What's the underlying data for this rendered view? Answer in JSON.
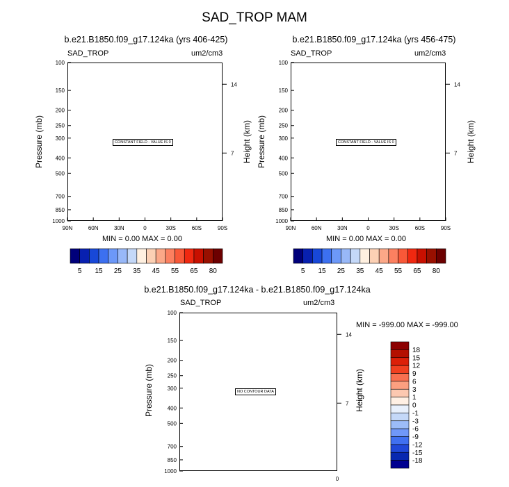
{
  "chart_data": [
    {
      "type": "contour",
      "panel_title": "b.e21.B1850.f09_g17.124ka (yrs 406-425)",
      "left_label": "SAD_TROP",
      "right_label": "um2/cm3",
      "ylabel": "Pressure (mb)",
      "ylabel_right": "Height (km)",
      "pressure_ticks": [
        "100",
        "150",
        "200",
        "250",
        "300",
        "400",
        "500",
        "700",
        "850",
        "1000"
      ],
      "height_ticks": [
        "14",
        "7"
      ],
      "lat_ticks": [
        "90N",
        "60N",
        "30N",
        "0",
        "30S",
        "60S",
        "90S"
      ],
      "note": "CONSTANT FIELD - VALUE IS 0",
      "stats": "MIN =   0.00  MAX =   0.00",
      "colorbar_labels": [
        "5",
        "15",
        "25",
        "35",
        "45",
        "55",
        "65",
        "80"
      ],
      "colorbar_colors": [
        "#00007a",
        "#0820b0",
        "#1848d8",
        "#3c70f0",
        "#6c98f8",
        "#98b8f8",
        "#c4d8f8",
        "#fff0e0",
        "#fcd0b4",
        "#fca888",
        "#fc8060",
        "#f85838",
        "#f02810",
        "#c81000",
        "#981000",
        "#6c0000"
      ]
    },
    {
      "type": "contour",
      "panel_title": "b.e21.B1850.f09_g17.124ka (yrs 456-475)",
      "left_label": "SAD_TROP",
      "right_label": "um2/cm3",
      "ylabel": "Pressure (mb)",
      "ylabel_right": "Height (km)",
      "pressure_ticks": [
        "100",
        "150",
        "200",
        "250",
        "300",
        "400",
        "500",
        "700",
        "850",
        "1000"
      ],
      "height_ticks": [
        "14",
        "7"
      ],
      "lat_ticks": [
        "90N",
        "60N",
        "30N",
        "0",
        "30S",
        "60S",
        "90S"
      ],
      "note": "CONSTANT FIELD - VALUE IS 0",
      "stats": "MIN =   0.00  MAX =   0.00",
      "colorbar_labels": [
        "5",
        "15",
        "25",
        "35",
        "45",
        "55",
        "65",
        "80"
      ],
      "colorbar_colors": [
        "#00007a",
        "#0820b0",
        "#1848d8",
        "#3c70f0",
        "#6c98f8",
        "#98b8f8",
        "#c4d8f8",
        "#fff0e0",
        "#fcd0b4",
        "#fca888",
        "#fc8060",
        "#f85838",
        "#f02810",
        "#c81000",
        "#981000",
        "#6c0000"
      ]
    },
    {
      "type": "contour",
      "panel_title": "b.e21.B1850.f09_g17.124ka - b.e21.B1850.f09_g17.124ka",
      "left_label": "SAD_TROP",
      "right_label": "um2/cm3",
      "ylabel": "Pressure (mb)",
      "ylabel_right": "Height (km)",
      "pressure_ticks": [
        "100",
        "150",
        "200",
        "250",
        "300",
        "400",
        "500",
        "700",
        "850",
        "1000"
      ],
      "height_ticks": [
        "14",
        "7"
      ],
      "x_ticks": [
        "0"
      ],
      "note": "NO CONTOUR DATA",
      "stats": "MIN = -999.00  MAX = -999.00",
      "colorbar_labels": [
        "18",
        "15",
        "12",
        "9",
        "6",
        "3",
        "1",
        "0",
        "-1",
        "-3",
        "-6",
        "-9",
        "-12",
        "-15",
        "-18"
      ],
      "colorbar_colors": [
        "#8c0000",
        "#b41000",
        "#dc2008",
        "#f04020",
        "#f87050",
        "#fca080",
        "#fcc8b0",
        "#fff0e4",
        "#e8f0fc",
        "#c4d8f8",
        "#9cbcf8",
        "#7098f8",
        "#4070f0",
        "#2048d8",
        "#0828b0",
        "#000090"
      ]
    }
  ],
  "figure_title": "SAD_TROP MAM"
}
